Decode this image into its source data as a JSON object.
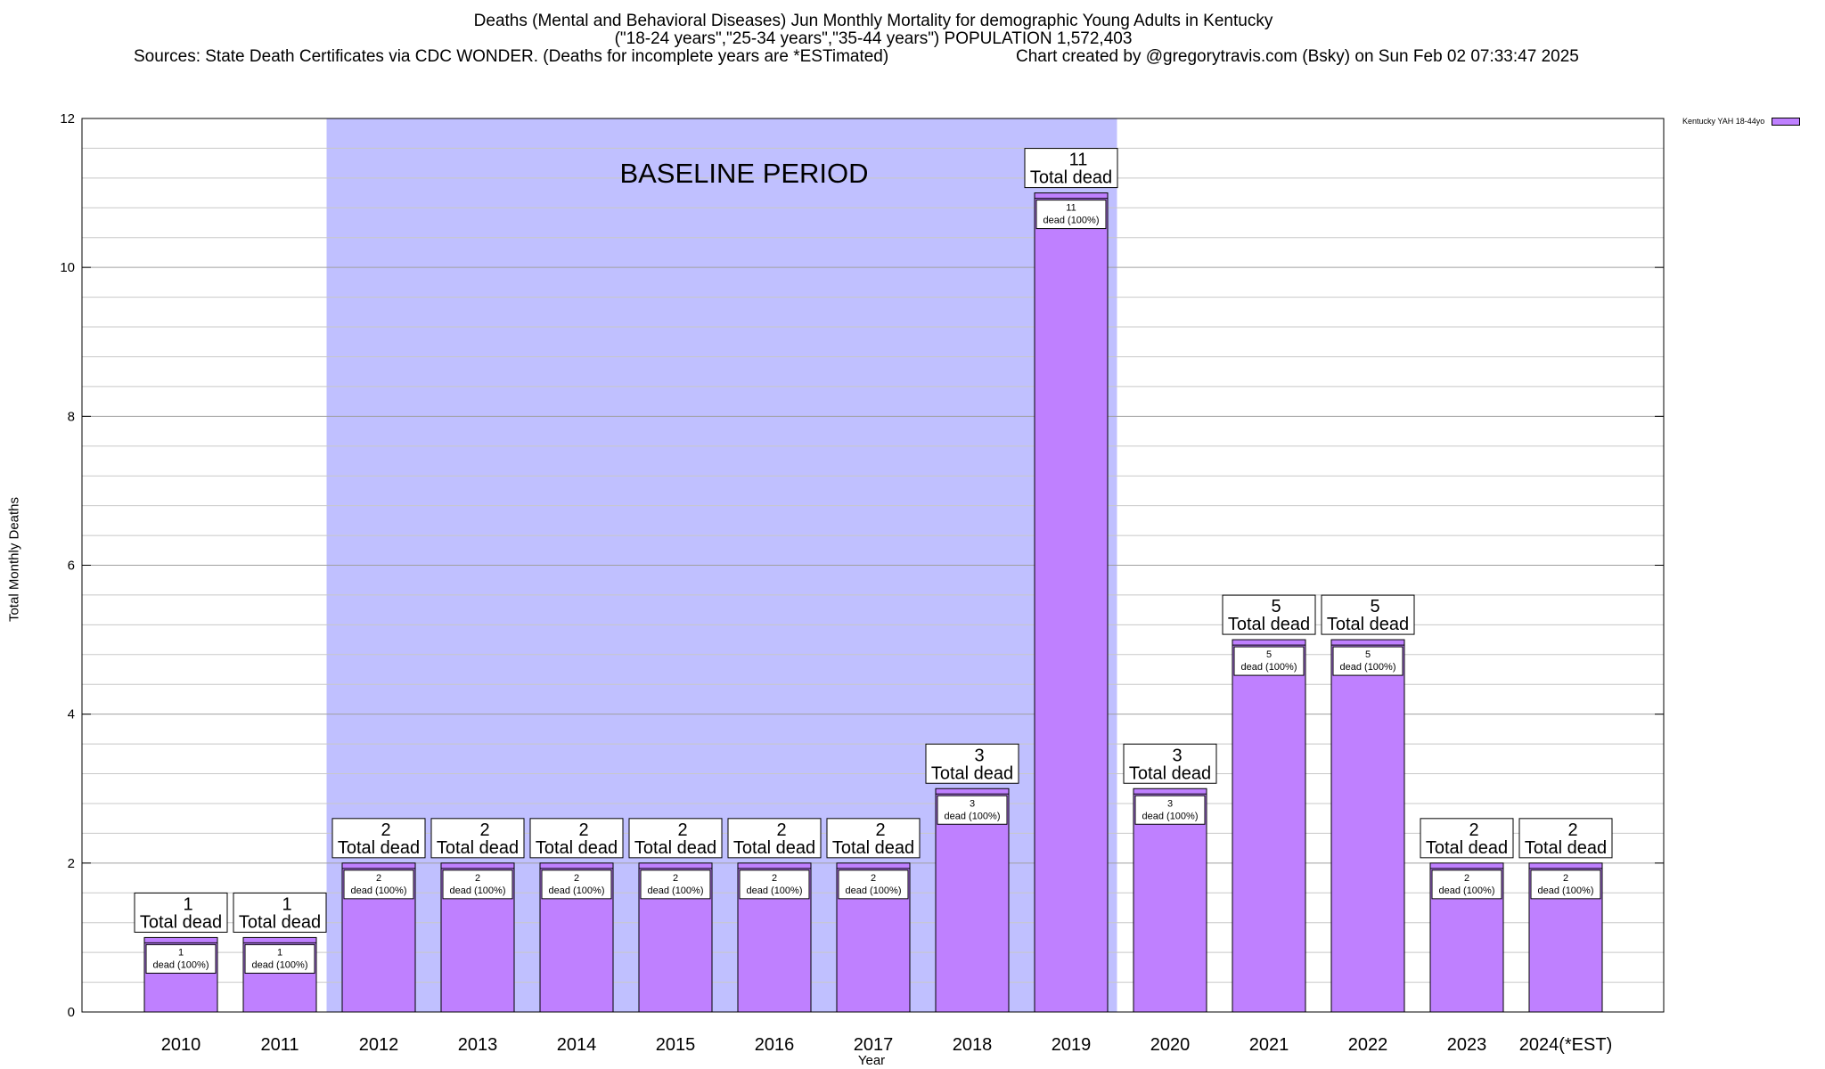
{
  "header": {
    "title_line1": "Deaths (Mental and Behavioral Diseases) Jun Monthly Mortality for demographic Young Adults in Kentucky",
    "title_line2": "(\"18-24 years\",\"25-34 years\",\"35-44 years\") POPULATION 1,572,403",
    "sources": "Sources: State Death Certificates via CDC WONDER. (Deaths for incomplete years are *ESTimated)",
    "credit": "Chart created by @gregorytravis.com (Bsky) on Sun Feb 02 07:33:47 2025"
  },
  "colors": {
    "bar": "#bf80ff",
    "baseline_band": "#c0c0ff",
    "grid": "#c8c8c8"
  },
  "chart_data": {
    "type": "bar",
    "title": "Deaths (Mental and Behavioral Diseases) Jun Monthly Mortality for demographic Young Adults in Kentucky",
    "xlabel": "Year",
    "ylabel": "Total Monthly Deaths",
    "ylim": [
      0,
      12
    ],
    "yticks": [
      0,
      2,
      4,
      6,
      8,
      10,
      12
    ],
    "grid": true,
    "legend_position": "top-right",
    "categories": [
      "2010",
      "2011",
      "2012",
      "2013",
      "2014",
      "2015",
      "2016",
      "2017",
      "2018",
      "2019",
      "2020",
      "2021",
      "2022",
      "2023",
      "2024(*EST)"
    ],
    "series": [
      {
        "name": "Kentucky YAH 18-44yo",
        "values": [
          1,
          1,
          2,
          2,
          2,
          2,
          2,
          2,
          3,
          11,
          3,
          5,
          5,
          2,
          2
        ]
      }
    ],
    "total_label_suffix": "Total dead",
    "inner_label_suffix": "dead (100%)",
    "baseline_period": {
      "label": "BASELINE PERIOD",
      "start_category": "2012",
      "end_category": "2019"
    }
  }
}
